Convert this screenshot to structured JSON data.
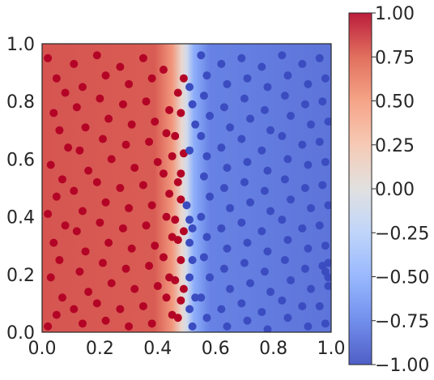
{
  "chart_data": {
    "type": "scatter",
    "title": "",
    "xlabel": "",
    "ylabel": "",
    "xlim": [
      0.0,
      1.0
    ],
    "ylim": [
      0.0,
      1.0
    ],
    "x_ticks": [
      "0.0",
      "0.2",
      "0.4",
      "0.6",
      "0.8",
      "1.0"
    ],
    "y_ticks": [
      "0.0",
      "0.2",
      "0.4",
      "0.6",
      "0.8",
      "1.0"
    ],
    "background": {
      "type": "decision-surface",
      "colormap": "coolwarm",
      "vmin": -1.0,
      "vmax": 1.0,
      "boundary_x": 0.5,
      "transition_width": 0.05
    },
    "colorbar": {
      "ticks": [
        "1.00",
        "0.75",
        "0.50",
        "0.25",
        "0.00",
        "−0.25",
        "−0.50",
        "−0.75",
        "−1.00"
      ],
      "vmin": -1.0,
      "vmax": 1.0
    },
    "grid": false,
    "legend": "none",
    "colors": {
      "class_1": "#b40426",
      "class_neg1": "#3b4cc0"
    },
    "series": [
      {
        "class": 1,
        "color": "#b40426",
        "points": [
          [
            0.02,
            0.95
          ],
          [
            0.05,
            0.88
          ],
          [
            0.08,
            0.83
          ],
          [
            0.04,
            0.76
          ],
          [
            0.06,
            0.7
          ],
          [
            0.09,
            0.64
          ],
          [
            0.03,
            0.58
          ],
          [
            0.07,
            0.53
          ],
          [
            0.05,
            0.47
          ],
          [
            0.02,
            0.41
          ],
          [
            0.08,
            0.37
          ],
          [
            0.04,
            0.31
          ],
          [
            0.06,
            0.25
          ],
          [
            0.03,
            0.19
          ],
          [
            0.07,
            0.12
          ],
          [
            0.05,
            0.06
          ],
          [
            0.02,
            0.02
          ],
          [
            0.11,
            0.93
          ],
          [
            0.14,
            0.85
          ],
          [
            0.12,
            0.78
          ],
          [
            0.15,
            0.71
          ],
          [
            0.13,
            0.63
          ],
          [
            0.16,
            0.56
          ],
          [
            0.11,
            0.49
          ],
          [
            0.14,
            0.42
          ],
          [
            0.12,
            0.35
          ],
          [
            0.15,
            0.28
          ],
          [
            0.13,
            0.21
          ],
          [
            0.16,
            0.14
          ],
          [
            0.11,
            0.08
          ],
          [
            0.14,
            0.03
          ],
          [
            0.19,
            0.96
          ],
          [
            0.22,
            0.89
          ],
          [
            0.2,
            0.81
          ],
          [
            0.23,
            0.74
          ],
          [
            0.21,
            0.67
          ],
          [
            0.24,
            0.6
          ],
          [
            0.19,
            0.52
          ],
          [
            0.22,
            0.45
          ],
          [
            0.2,
            0.38
          ],
          [
            0.23,
            0.31
          ],
          [
            0.21,
            0.24
          ],
          [
            0.24,
            0.17
          ],
          [
            0.19,
            0.1
          ],
          [
            0.22,
            0.04
          ],
          [
            0.27,
            0.92
          ],
          [
            0.3,
            0.86
          ],
          [
            0.28,
            0.79
          ],
          [
            0.31,
            0.72
          ],
          [
            0.29,
            0.65
          ],
          [
            0.32,
            0.57
          ],
          [
            0.27,
            0.5
          ],
          [
            0.3,
            0.43
          ],
          [
            0.28,
            0.36
          ],
          [
            0.31,
            0.29
          ],
          [
            0.29,
            0.22
          ],
          [
            0.32,
            0.15
          ],
          [
            0.27,
            0.08
          ],
          [
            0.3,
            0.02
          ],
          [
            0.35,
            0.95
          ],
          [
            0.38,
            0.88
          ],
          [
            0.36,
            0.8
          ],
          [
            0.39,
            0.73
          ],
          [
            0.37,
            0.66
          ],
          [
            0.4,
            0.59
          ],
          [
            0.35,
            0.51
          ],
          [
            0.38,
            0.44
          ],
          [
            0.36,
            0.37
          ],
          [
            0.39,
            0.3
          ],
          [
            0.37,
            0.23
          ],
          [
            0.4,
            0.16
          ],
          [
            0.35,
            0.09
          ],
          [
            0.38,
            0.03
          ],
          [
            0.42,
            0.91
          ],
          [
            0.44,
            0.77
          ],
          [
            0.43,
            0.69
          ],
          [
            0.45,
            0.61
          ],
          [
            0.42,
            0.55
          ],
          [
            0.44,
            0.48
          ],
          [
            0.43,
            0.4
          ],
          [
            0.45,
            0.33
          ],
          [
            0.42,
            0.26
          ],
          [
            0.44,
            0.19
          ],
          [
            0.43,
            0.12
          ],
          [
            0.45,
            0.06
          ],
          [
            0.47,
            0.83
          ],
          [
            0.48,
            0.76
          ],
          [
            0.46,
            0.68
          ],
          [
            0.48,
            0.55
          ],
          [
            0.47,
            0.52
          ],
          [
            0.48,
            0.46
          ],
          [
            0.46,
            0.39
          ],
          [
            0.47,
            0.32
          ],
          [
            0.48,
            0.25
          ],
          [
            0.46,
            0.18
          ],
          [
            0.48,
            0.11
          ],
          [
            0.47,
            0.05
          ],
          [
            0.49,
            0.88
          ],
          [
            0.49,
            0.62
          ],
          [
            0.49,
            0.35
          ],
          [
            0.49,
            0.15
          ]
        ]
      },
      {
        "class": -1,
        "color": "#3b4cc0",
        "points": [
          [
            0.51,
            0.85
          ],
          [
            0.52,
            0.79
          ],
          [
            0.53,
            0.72
          ],
          [
            0.51,
            0.63
          ],
          [
            0.5,
            0.44
          ],
          [
            0.51,
            0.39
          ],
          [
            0.52,
            0.36
          ],
          [
            0.51,
            0.31
          ],
          [
            0.52,
            0.25
          ],
          [
            0.51,
            0.19
          ],
          [
            0.53,
            0.12
          ],
          [
            0.51,
            0.08
          ],
          [
            0.52,
            0.02
          ],
          [
            0.55,
            0.96
          ],
          [
            0.57,
            0.89
          ],
          [
            0.56,
            0.82
          ],
          [
            0.58,
            0.75
          ],
          [
            0.55,
            0.68
          ],
          [
            0.57,
            0.61
          ],
          [
            0.56,
            0.54
          ],
          [
            0.58,
            0.47
          ],
          [
            0.55,
            0.4
          ],
          [
            0.57,
            0.33
          ],
          [
            0.56,
            0.26
          ],
          [
            0.58,
            0.19
          ],
          [
            0.55,
            0.12
          ],
          [
            0.57,
            0.05
          ],
          [
            0.62,
            0.93
          ],
          [
            0.64,
            0.86
          ],
          [
            0.63,
            0.78
          ],
          [
            0.65,
            0.71
          ],
          [
            0.62,
            0.64
          ],
          [
            0.64,
            0.57
          ],
          [
            0.63,
            0.5
          ],
          [
            0.65,
            0.43
          ],
          [
            0.62,
            0.36
          ],
          [
            0.64,
            0.29
          ],
          [
            0.63,
            0.22
          ],
          [
            0.65,
            0.15
          ],
          [
            0.62,
            0.08
          ],
          [
            0.64,
            0.02
          ],
          [
            0.69,
            0.95
          ],
          [
            0.71,
            0.88
          ],
          [
            0.7,
            0.81
          ],
          [
            0.72,
            0.74
          ],
          [
            0.69,
            0.67
          ],
          [
            0.71,
            0.59
          ],
          [
            0.7,
            0.52
          ],
          [
            0.72,
            0.45
          ],
          [
            0.69,
            0.38
          ],
          [
            0.71,
            0.31
          ],
          [
            0.7,
            0.24
          ],
          [
            0.72,
            0.17
          ],
          [
            0.69,
            0.1
          ],
          [
            0.71,
            0.04
          ],
          [
            0.76,
            0.92
          ],
          [
            0.78,
            0.85
          ],
          [
            0.77,
            0.77
          ],
          [
            0.79,
            0.7
          ],
          [
            0.76,
            0.63
          ],
          [
            0.78,
            0.56
          ],
          [
            0.77,
            0.49
          ],
          [
            0.79,
            0.42
          ],
          [
            0.76,
            0.35
          ],
          [
            0.78,
            0.28
          ],
          [
            0.77,
            0.21
          ],
          [
            0.79,
            0.14
          ],
          [
            0.76,
            0.07
          ],
          [
            0.78,
            0.01
          ],
          [
            0.83,
            0.96
          ],
          [
            0.85,
            0.89
          ],
          [
            0.84,
            0.82
          ],
          [
            0.86,
            0.75
          ],
          [
            0.83,
            0.68
          ],
          [
            0.85,
            0.6
          ],
          [
            0.84,
            0.53
          ],
          [
            0.86,
            0.46
          ],
          [
            0.83,
            0.39
          ],
          [
            0.85,
            0.32
          ],
          [
            0.84,
            0.25
          ],
          [
            0.86,
            0.18
          ],
          [
            0.83,
            0.11
          ],
          [
            0.85,
            0.05
          ],
          [
            0.9,
            0.93
          ],
          [
            0.92,
            0.86
          ],
          [
            0.91,
            0.79
          ],
          [
            0.93,
            0.72
          ],
          [
            0.9,
            0.65
          ],
          [
            0.92,
            0.58
          ],
          [
            0.91,
            0.5
          ],
          [
            0.93,
            0.43
          ],
          [
            0.9,
            0.36
          ],
          [
            0.92,
            0.29
          ],
          [
            0.91,
            0.22
          ],
          [
            0.93,
            0.15
          ],
          [
            0.9,
            0.09
          ],
          [
            0.92,
            0.02
          ],
          [
            0.96,
            0.95
          ],
          [
            0.98,
            0.88
          ],
          [
            0.97,
            0.8
          ],
          [
            0.99,
            0.73
          ],
          [
            0.96,
            0.66
          ],
          [
            0.98,
            0.59
          ],
          [
            0.97,
            0.51
          ],
          [
            0.99,
            0.44
          ],
          [
            0.96,
            0.37
          ],
          [
            0.98,
            0.3
          ],
          [
            0.97,
            0.23
          ],
          [
            0.99,
            0.16
          ],
          [
            0.96,
            0.09
          ],
          [
            0.98,
            0.03
          ],
          [
            0.99,
            0.24
          ],
          [
            0.98,
            0.21
          ],
          [
            0.99,
            0.19
          ]
        ]
      }
    ]
  }
}
